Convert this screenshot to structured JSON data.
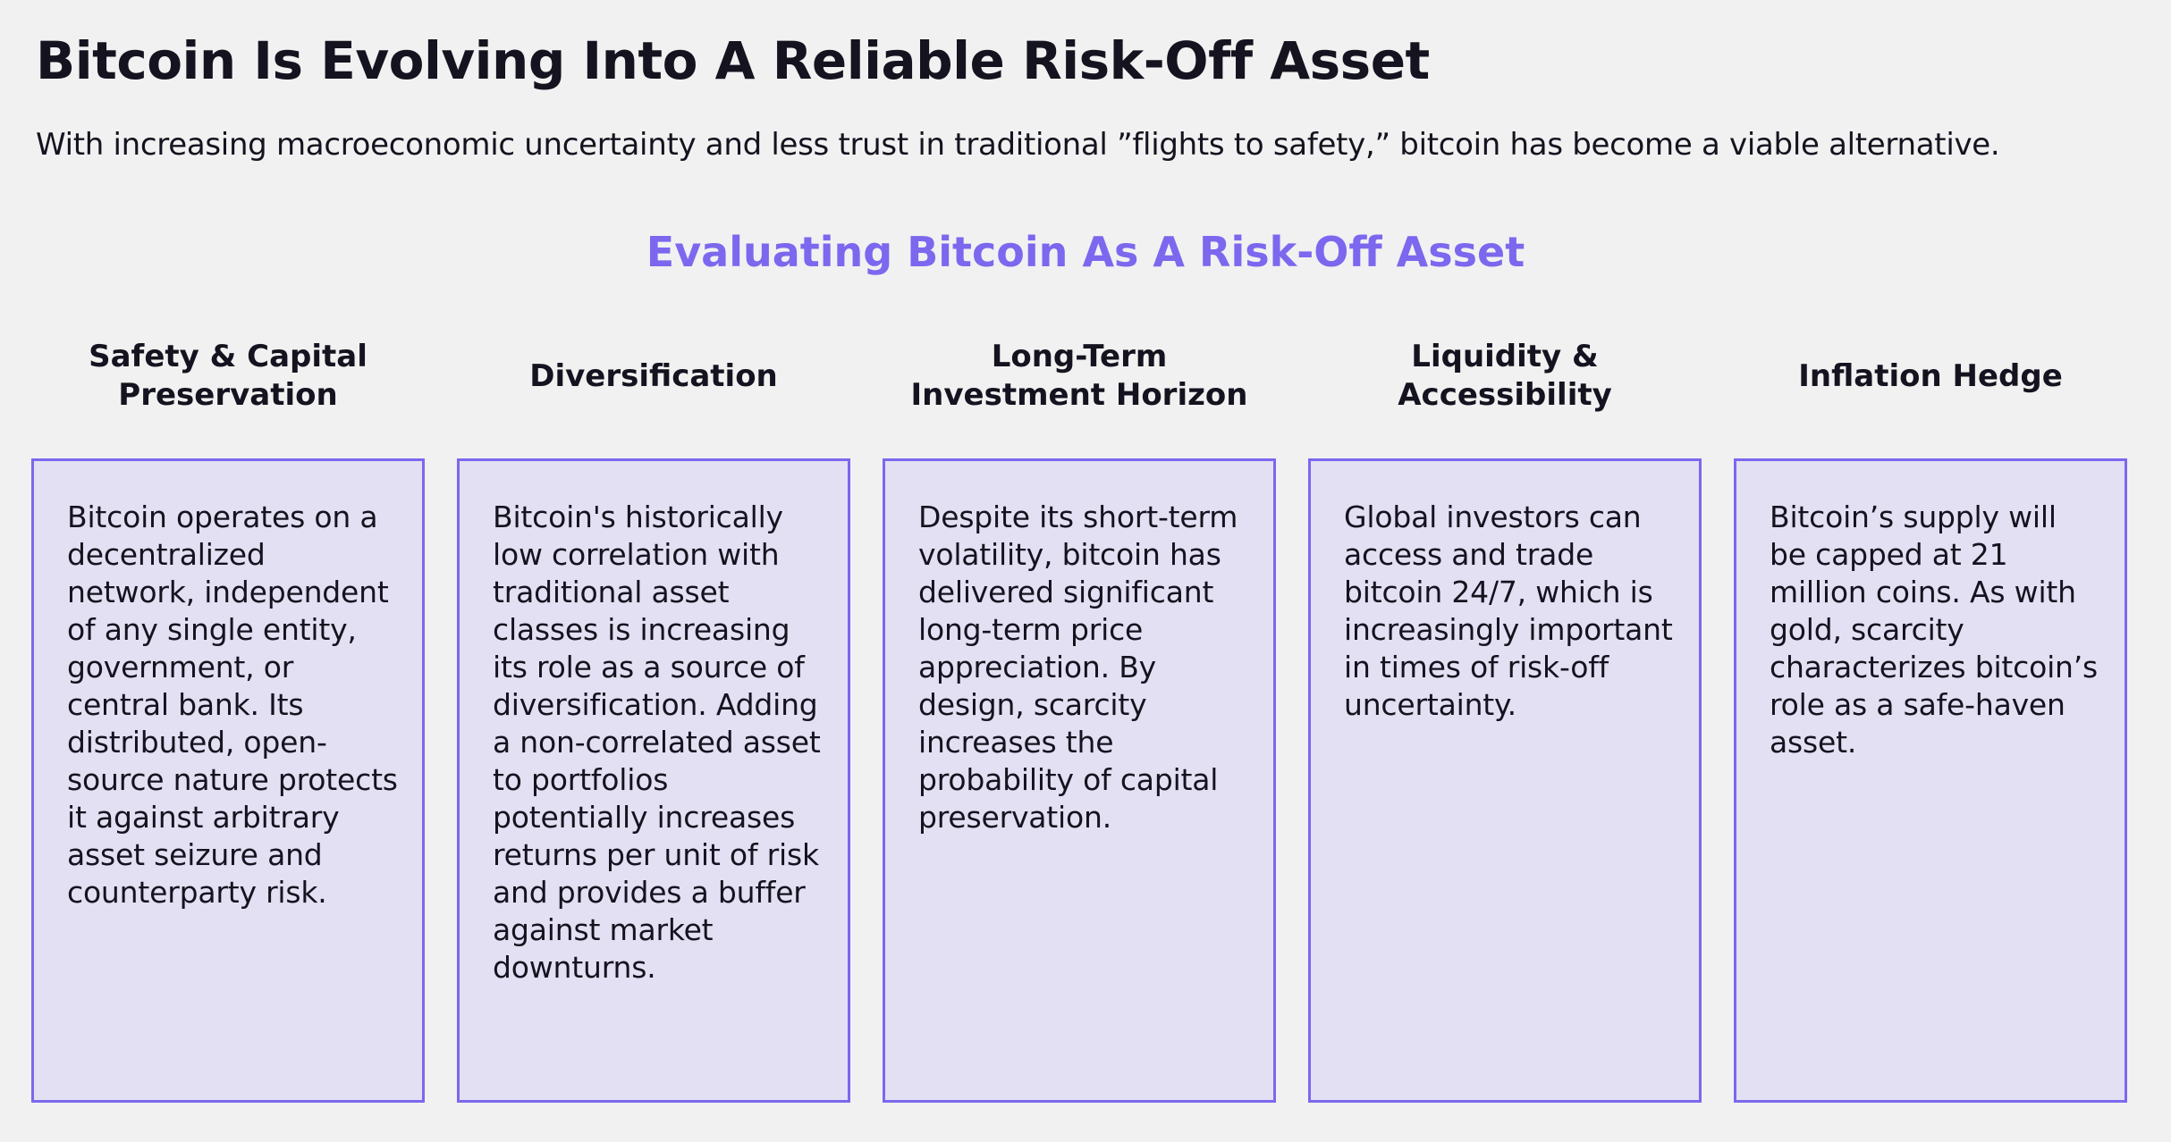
{
  "header": {
    "title": "Bitcoin Is Evolving Into A Reliable Risk-Off Asset",
    "subtitle": "With increasing macroeconomic uncertainty and less trust in traditional ”flights to safety,” bitcoin has become a viable alternative."
  },
  "section": {
    "title": "Evaluating Bitcoin As A Risk-Off Asset"
  },
  "columns": [
    {
      "heading": "Safety & Capital Preservation",
      "body": "Bitcoin operates on a decentralized network, independent of any single entity, government, or central bank. Its distributed, open-source nature protects it against arbitrary asset seizure and counterparty risk."
    },
    {
      "heading": "Diversification",
      "body": "Bitcoin's historically low correlation with traditional asset classes is increasing its role as a source of diversification. Adding a non-correlated asset to portfolios potentially increases returns per unit of risk and provides a buffer against market downturns."
    },
    {
      "heading": "Long-Term Investment Horizon",
      "body": "Despite its short-term volatility, bitcoin has delivered significant long-term price appreciation. By design, scarcity increases the probability of capital preservation."
    },
    {
      "heading": "Liquidity & Accessibility",
      "body": "Global investors can access and trade bitcoin 24/7, which is increasingly important in times of risk-off uncertainty."
    },
    {
      "heading": "Inflation Hedge",
      "body": "Bitcoin’s supply will be capped at 21 million coins. As with gold, scarcity characterizes bitcoin’s role as a safe-haven asset."
    }
  ],
  "colors": {
    "accent": "#7b68ee",
    "card_background": "#e3e0f3",
    "page_background": "#f1f1f1",
    "text": "#15131f"
  }
}
